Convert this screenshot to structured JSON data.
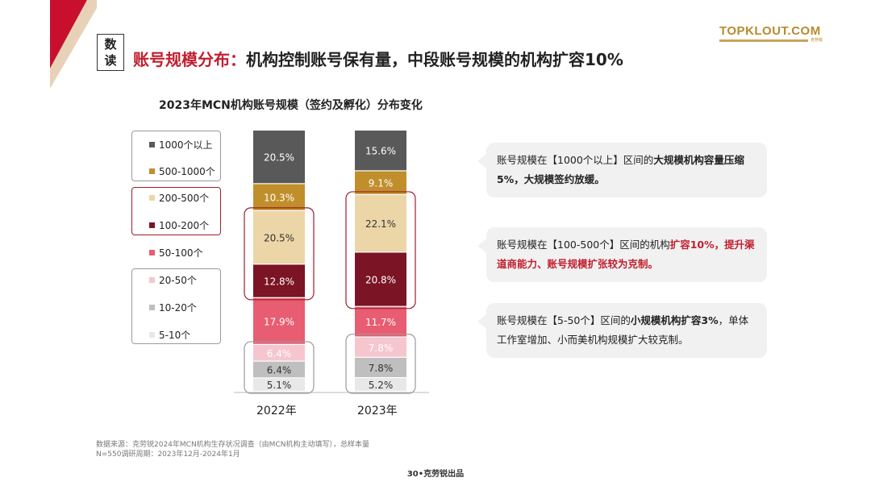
{
  "badge": {
    "line1": "数",
    "line2": "读"
  },
  "headline": {
    "accent": "账号规模分布：",
    "main": "机构控制账号保有量，中段账号规模的机构扩容10%"
  },
  "logo": {
    "name": "TOPKLOUT.COM",
    "sub": "克劳锐"
  },
  "colors": {
    "accent": "#c01f2f",
    "brand": "#b88a2e",
    "dark_red": "#7b1424"
  },
  "chart_data": {
    "type": "bar",
    "stacked": true,
    "title": "2023年MCN机构账号规模（签约及孵化）分布变化",
    "categories": [
      "2022年",
      "2023年"
    ],
    "unit": "%",
    "series": [
      {
        "name": "1000个以上",
        "color": "#595959",
        "values": [
          20.5,
          15.6
        ],
        "labels": [
          "20.5%",
          "15.6%"
        ]
      },
      {
        "name": "500-1000个",
        "color": "#c08f2c",
        "values": [
          10.3,
          9.1
        ],
        "labels": [
          "10.3%",
          "9.1%"
        ]
      },
      {
        "name": "200-500个",
        "color": "#ecd6a8",
        "values": [
          20.5,
          22.1
        ],
        "labels": [
          "20.5%",
          "22.1%"
        ]
      },
      {
        "name": "100-200个",
        "color": "#7b1424",
        "values": [
          12.8,
          20.8
        ],
        "labels": [
          "12.8%",
          "20.8%"
        ]
      },
      {
        "name": "50-100个",
        "color": "#e85d72",
        "values": [
          17.9,
          11.7
        ],
        "labels": [
          "17.9%",
          "11.7%"
        ]
      },
      {
        "name": "20-50个",
        "color": "#f6c6cf",
        "values": [
          6.4,
          7.8
        ],
        "labels": [
          "6.4%",
          "7.8%"
        ]
      },
      {
        "name": "10-20个",
        "color": "#bfbfbf",
        "values": [
          6.4,
          7.8
        ],
        "labels": [
          "6.4%",
          "7.8%"
        ]
      },
      {
        "name": "5-10个",
        "color": "#e8e8e8",
        "values": [
          5.1,
          5.2
        ],
        "labels": [
          "5.1%",
          "5.2%"
        ]
      }
    ]
  },
  "callouts": [
    {
      "pre": "账号规模在【1000个以上】区间的",
      "bold": "大规模机构容量压缩5%，大规模签约放缓。"
    },
    {
      "pre": "账号规模在【100-500个】区间的机构",
      "red": "扩容10%，提升渠道商能力、账号规模扩张较为克制。"
    },
    {
      "pre": "账号规模在【5-50个】区间的",
      "bold": "小规模机构扩容3%",
      "post": "，单体工作室增加、小而美机构规模扩大较克制。"
    }
  ],
  "source": {
    "line1": "数据来源：克劳锐2024年MCN机构生存状况调查（由MCN机构主动填写），总样本量",
    "line2": "N=550调研周期：2023年12月-2024年1月"
  },
  "footer": "30•克劳锐出品"
}
